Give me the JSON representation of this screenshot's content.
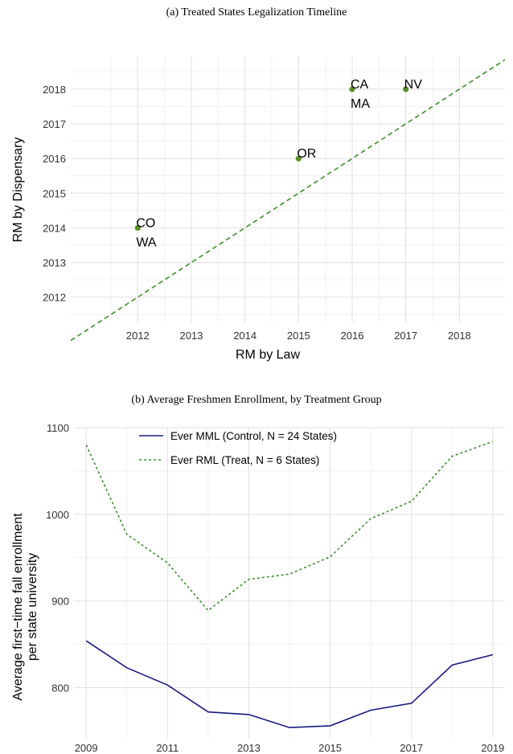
{
  "chart_data": [
    {
      "type": "scatter",
      "title": "(a) Treated States Legalization Timeline",
      "xlabel": "RM by Law",
      "ylabel": "RM by Dispensary",
      "xlim": [
        2010.75,
        2018.85
      ],
      "ylim": [
        2011.25,
        2018.95
      ],
      "xticks": [
        2012,
        2013,
        2014,
        2015,
        2016,
        2017,
        2018
      ],
      "yticks": [
        2012,
        2013,
        2014,
        2015,
        2016,
        2017,
        2018
      ],
      "grid": true,
      "reference_line": "y = x",
      "colors": {
        "points": "#5a8f29",
        "reference_line": "#3f8f2f"
      },
      "points": [
        {
          "x": 2012,
          "y": 2014,
          "labels": [
            "CO",
            "WA"
          ]
        },
        {
          "x": 2015,
          "y": 2016,
          "labels": [
            "OR"
          ]
        },
        {
          "x": 2016,
          "y": 2018,
          "labels": [
            "CA",
            "MA"
          ]
        },
        {
          "x": 2017,
          "y": 2018,
          "labels": [
            "NV"
          ]
        }
      ]
    },
    {
      "type": "line",
      "title": "(b) Average Freshmen Enrollment, by Treatment Group",
      "xlabel": "",
      "ylabel": [
        "Average first−time fall enrollment",
        "per state university"
      ],
      "xlim": [
        2008.7,
        2019.3
      ],
      "ylim": [
        742,
        1100
      ],
      "xticks": [
        2009,
        2011,
        2013,
        2015,
        2017,
        2019
      ],
      "yticks": [
        800,
        900,
        1000,
        1100
      ],
      "grid": true,
      "legend_position": "top-left",
      "x": [
        2009,
        2010,
        2011,
        2012,
        2013,
        2014,
        2015,
        2016,
        2017,
        2018,
        2019
      ],
      "series": [
        {
          "name": "Ever MML (Control, N = 24 States)",
          "style": "solid",
          "color": "#1a1a80",
          "values": [
            854,
            823,
            803,
            772,
            769,
            754,
            756,
            774,
            782,
            826,
            838
          ]
        },
        {
          "name": "Ever RML (Treat, N = 6 States)",
          "style": "dashed",
          "color": "#3f8f2f",
          "values": [
            1080,
            977,
            944,
            889,
            925,
            931,
            951,
            995,
            1015,
            1067,
            1084
          ]
        }
      ]
    }
  ]
}
